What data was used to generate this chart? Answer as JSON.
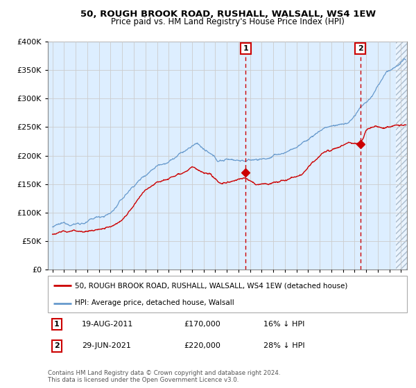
{
  "title1": "50, ROUGH BROOK ROAD, RUSHALL, WALSALL, WS4 1EW",
  "title2": "Price paid vs. HM Land Registry's House Price Index (HPI)",
  "legend_label1": "50, ROUGH BROOK ROAD, RUSHALL, WALSALL, WS4 1EW (detached house)",
  "legend_label2": "HPI: Average price, detached house, Walsall",
  "annotation1": {
    "label": "1",
    "date": "19-AUG-2011",
    "price": "£170,000",
    "note": "16% ↓ HPI",
    "x_year": 2011.63
  },
  "annotation2": {
    "label": "2",
    "date": "29-JUN-2021",
    "price": "£220,000",
    "note": "28% ↓ HPI",
    "x_year": 2021.49
  },
  "copyright": "Contains HM Land Registry data © Crown copyright and database right 2024.\nThis data is licensed under the Open Government Licence v3.0.",
  "ylim": [
    0,
    400000
  ],
  "xlim_start": 1994.6,
  "xlim_end": 2025.5,
  "hatch_start": 2024.58,
  "red_color": "#cc0000",
  "blue_color": "#6699cc",
  "bg_color": "#ddeeff",
  "hatch_color": "#aabbcc",
  "grid_color": "#cccccc",
  "sale1_y": 170000,
  "sale2_y": 220000,
  "hpi_keypoints": [
    [
      1995.0,
      75000
    ],
    [
      1996.5,
      79000
    ],
    [
      1998.0,
      85000
    ],
    [
      2000.0,
      100000
    ],
    [
      2002.0,
      148000
    ],
    [
      2004.0,
      188000
    ],
    [
      2005.5,
      205000
    ],
    [
      2007.5,
      228000
    ],
    [
      2009.2,
      193000
    ],
    [
      2010.5,
      197000
    ],
    [
      2012.0,
      196000
    ],
    [
      2013.5,
      200000
    ],
    [
      2015.0,
      208000
    ],
    [
      2016.5,
      225000
    ],
    [
      2017.5,
      240000
    ],
    [
      2018.5,
      255000
    ],
    [
      2019.5,
      258000
    ],
    [
      2020.5,
      262000
    ],
    [
      2021.5,
      285000
    ],
    [
      2022.5,
      305000
    ],
    [
      2023.2,
      328000
    ],
    [
      2023.8,
      345000
    ],
    [
      2024.5,
      355000
    ],
    [
      2025.3,
      368000
    ]
  ],
  "red_keypoints": [
    [
      1995.0,
      62000
    ],
    [
      1996.5,
      66000
    ],
    [
      1998.0,
      69000
    ],
    [
      1999.5,
      72000
    ],
    [
      2001.0,
      92000
    ],
    [
      2002.5,
      130000
    ],
    [
      2004.0,
      160000
    ],
    [
      2005.5,
      175000
    ],
    [
      2007.0,
      193000
    ],
    [
      2008.5,
      173000
    ],
    [
      2009.5,
      157000
    ],
    [
      2010.5,
      162000
    ],
    [
      2011.63,
      170000
    ],
    [
      2012.5,
      157000
    ],
    [
      2013.5,
      158000
    ],
    [
      2014.5,
      162000
    ],
    [
      2015.5,
      168000
    ],
    [
      2016.5,
      175000
    ],
    [
      2017.5,
      195000
    ],
    [
      2018.5,
      210000
    ],
    [
      2019.5,
      215000
    ],
    [
      2020.5,
      222000
    ],
    [
      2021.49,
      220000
    ],
    [
      2022.0,
      243000
    ],
    [
      2022.8,
      252000
    ],
    [
      2023.3,
      248000
    ],
    [
      2024.0,
      250000
    ],
    [
      2024.5,
      253000
    ],
    [
      2025.3,
      255000
    ]
  ]
}
